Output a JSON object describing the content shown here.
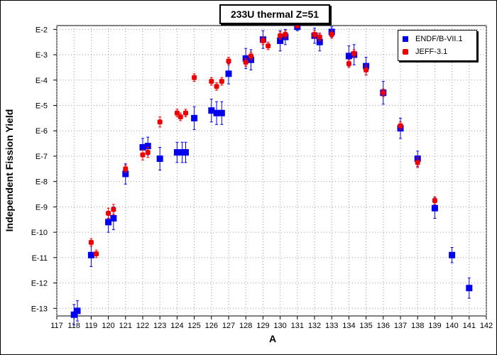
{
  "chart_data": {
    "type": "scatter",
    "title": "233U thermal Z=51",
    "xlabel": "A",
    "ylabel": "Independent Fission Yield",
    "xlim": [
      117,
      142
    ],
    "x_ticks": [
      117,
      118,
      119,
      120,
      121,
      122,
      123,
      124,
      125,
      126,
      127,
      128,
      129,
      130,
      131,
      132,
      133,
      134,
      135,
      136,
      137,
      138,
      139,
      140,
      141,
      142
    ],
    "yscale": "log",
    "ylim_exponent": [
      -13.3,
      -1.85
    ],
    "y_ticks": [
      {
        "exp": -2,
        "label": "E-2"
      },
      {
        "exp": -3,
        "label": "E-3"
      },
      {
        "exp": -4,
        "label": "E-4"
      },
      {
        "exp": -5,
        "label": "E-5"
      },
      {
        "exp": -6,
        "label": "E-6"
      },
      {
        "exp": -7,
        "label": "E-7"
      },
      {
        "exp": -8,
        "label": "E-8"
      },
      {
        "exp": -9,
        "label": "E-9"
      },
      {
        "exp": -10,
        "label": "E-10"
      },
      {
        "exp": -11,
        "label": "E-11"
      },
      {
        "exp": -12,
        "label": "E-12"
      },
      {
        "exp": -13,
        "label": "E-13"
      }
    ],
    "grid": true,
    "legend_position": "top-right",
    "series": [
      {
        "name": "ENDF/B-VII.1",
        "color": "#0000ee",
        "marker": "square",
        "points": [
          {
            "x": 118.0,
            "exp": -13.25,
            "err": 0.4
          },
          {
            "x": 118.2,
            "exp": -13.1,
            "err": 0.4
          },
          {
            "x": 119.0,
            "exp": -10.9,
            "err": 0.45
          },
          {
            "x": 120.0,
            "exp": -9.6,
            "err": 0.4
          },
          {
            "x": 120.3,
            "exp": -9.45,
            "err": 0.45
          },
          {
            "x": 121.0,
            "exp": -7.7,
            "err": 0.4
          },
          {
            "x": 122.0,
            "exp": -6.65,
            "err": 0.35
          },
          {
            "x": 122.3,
            "exp": -6.6,
            "err": 0.35
          },
          {
            "x": 123.0,
            "exp": -7.1,
            "err": 0.45
          },
          {
            "x": 124.0,
            "exp": -6.85,
            "err": 0.4
          },
          {
            "x": 124.3,
            "exp": -6.85,
            "err": 0.4
          },
          {
            "x": 124.5,
            "exp": -6.85,
            "err": 0.4
          },
          {
            "x": 125.0,
            "exp": -5.5,
            "err": 0.45
          },
          {
            "x": 126.0,
            "exp": -5.2,
            "err": 0.45
          },
          {
            "x": 126.3,
            "exp": -5.3,
            "err": 0.45
          },
          {
            "x": 126.6,
            "exp": -5.3,
            "err": 0.45
          },
          {
            "x": 127.0,
            "exp": -3.75,
            "err": 0.4
          },
          {
            "x": 128.0,
            "exp": -3.15,
            "err": 0.4
          },
          {
            "x": 128.3,
            "exp": -3.2,
            "err": 0.4
          },
          {
            "x": 129.0,
            "exp": -2.4,
            "err": 0.35
          },
          {
            "x": 130.0,
            "exp": -2.45,
            "err": 0.4
          },
          {
            "x": 130.3,
            "exp": -2.3,
            "err": 0.3
          },
          {
            "x": 131.0,
            "exp": -1.9,
            "err": 0.15
          },
          {
            "x": 132.0,
            "exp": -2.25,
            "err": 0.3
          },
          {
            "x": 132.3,
            "exp": -2.5,
            "err": 0.35
          },
          {
            "x": 133.0,
            "exp": -2.1,
            "err": 0.2
          },
          {
            "x": 134.0,
            "exp": -3.05,
            "err": 0.4
          },
          {
            "x": 134.3,
            "exp": -3.0,
            "err": 0.4
          },
          {
            "x": 135.0,
            "exp": -3.45,
            "err": 0.35
          },
          {
            "x": 136.0,
            "exp": -4.5,
            "err": 0.45
          },
          {
            "x": 137.0,
            "exp": -5.9,
            "err": 0.4
          },
          {
            "x": 138.0,
            "exp": -7.1,
            "err": 0.3
          },
          {
            "x": 139.0,
            "exp": -9.05,
            "err": 0.4
          },
          {
            "x": 140.0,
            "exp": -10.9,
            "err": 0.3
          },
          {
            "x": 141.0,
            "exp": -12.2,
            "err": 0.4
          }
        ]
      },
      {
        "name": "JEFF-3.1",
        "color": "#ee0000",
        "marker": "rounded-square",
        "points": [
          {
            "x": 119.0,
            "exp": -10.4,
            "err": 0.15
          },
          {
            "x": 119.3,
            "exp": -10.85,
            "err": 0.15
          },
          {
            "x": 120.0,
            "exp": -9.25,
            "err": 0.2
          },
          {
            "x": 120.3,
            "exp": -9.1,
            "err": 0.2
          },
          {
            "x": 121.0,
            "exp": -7.5,
            "err": 0.15
          },
          {
            "x": 122.0,
            "exp": -6.95,
            "err": 0.2
          },
          {
            "x": 122.3,
            "exp": -6.85,
            "err": 0.2
          },
          {
            "x": 123.0,
            "exp": -5.65,
            "err": 0.2
          },
          {
            "x": 124.0,
            "exp": -5.3,
            "err": 0.15
          },
          {
            "x": 124.2,
            "exp": -5.45,
            "err": 0.15
          },
          {
            "x": 124.5,
            "exp": -5.3,
            "err": 0.15
          },
          {
            "x": 125.0,
            "exp": -3.9,
            "err": 0.15
          },
          {
            "x": 126.0,
            "exp": -4.05,
            "err": 0.15
          },
          {
            "x": 126.3,
            "exp": -4.25,
            "err": 0.15
          },
          {
            "x": 126.6,
            "exp": -4.05,
            "err": 0.15
          },
          {
            "x": 127.0,
            "exp": -3.25,
            "err": 0.15
          },
          {
            "x": 128.0,
            "exp": -3.3,
            "err": 0.15
          },
          {
            "x": 128.3,
            "exp": -3.05,
            "err": 0.15
          },
          {
            "x": 129.0,
            "exp": -2.45,
            "err": 0.15
          },
          {
            "x": 129.3,
            "exp": -2.65,
            "err": 0.15
          },
          {
            "x": 130.0,
            "exp": -2.25,
            "err": 0.15
          },
          {
            "x": 130.3,
            "exp": -2.2,
            "err": 0.15
          },
          {
            "x": 131.0,
            "exp": -1.85,
            "err": 0.1
          },
          {
            "x": 132.0,
            "exp": -2.2,
            "err": 0.15
          },
          {
            "x": 132.3,
            "exp": -2.3,
            "err": 0.15
          },
          {
            "x": 133.0,
            "exp": -2.2,
            "err": 0.15
          },
          {
            "x": 134.0,
            "exp": -3.35,
            "err": 0.15
          },
          {
            "x": 134.3,
            "exp": -2.95,
            "err": 0.15
          },
          {
            "x": 135.0,
            "exp": -3.6,
            "err": 0.2
          },
          {
            "x": 136.0,
            "exp": -4.5,
            "err": 0.15
          },
          {
            "x": 137.0,
            "exp": -5.8,
            "err": 0.15
          },
          {
            "x": 138.0,
            "exp": -7.25,
            "err": 0.2
          },
          {
            "x": 139.0,
            "exp": -8.75,
            "err": 0.15
          }
        ]
      }
    ]
  }
}
